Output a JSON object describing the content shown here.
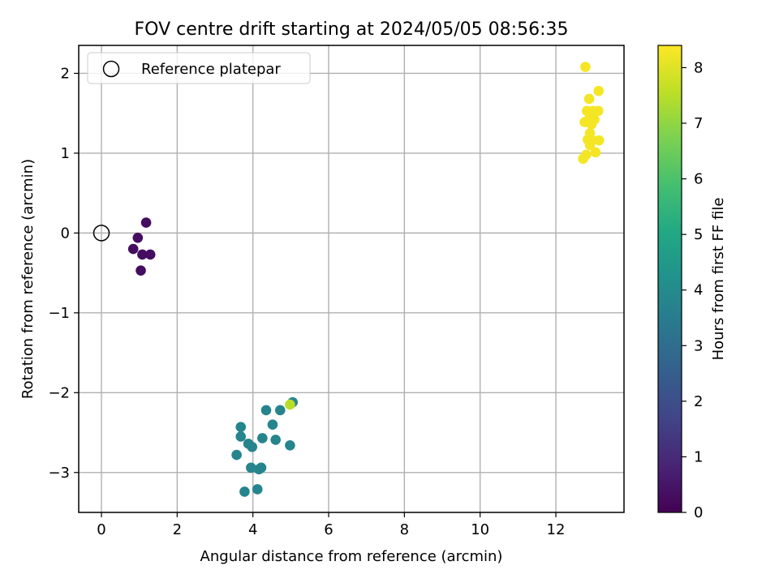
{
  "chart_data": {
    "type": "scatter",
    "title": "FOV centre drift starting at 2024/05/05 08:56:35",
    "xlabel": "Angular distance from reference (arcmin)",
    "ylabel": "Rotation from reference (arcmin)",
    "xlim": [
      -0.6,
      13.8
    ],
    "ylim": [
      -3.5,
      2.35
    ],
    "xticks": [
      0,
      2,
      4,
      6,
      8,
      10,
      12
    ],
    "yticks": [
      -3,
      -2,
      -1,
      0,
      1,
      2
    ],
    "xtick_labels": [
      "0",
      "2",
      "4",
      "6",
      "8",
      "10",
      "12"
    ],
    "ytick_labels": [
      "−3",
      "−2",
      "−1",
      "0",
      "1",
      "2"
    ],
    "grid": true,
    "legend": {
      "position": "top-left",
      "entries": [
        "Reference platepar"
      ]
    },
    "reference_point": {
      "x": 0,
      "y": 0,
      "label": "Reference platepar"
    },
    "colorbar": {
      "label": "Hours from first FF file",
      "range": [
        0,
        8.4
      ],
      "ticks": [
        0,
        1,
        2,
        3,
        4,
        5,
        6,
        7,
        8
      ],
      "tick_labels": [
        "0",
        "1",
        "2",
        "3",
        "4",
        "5",
        "6",
        "7",
        "8"
      ],
      "colormap": "viridis"
    },
    "points": [
      {
        "x": 1.18,
        "y": 0.13,
        "c": 0.3
      },
      {
        "x": 0.96,
        "y": -0.06,
        "c": 0.3
      },
      {
        "x": 0.84,
        "y": -0.2,
        "c": 0.3
      },
      {
        "x": 1.08,
        "y": -0.27,
        "c": 0.3
      },
      {
        "x": 1.29,
        "y": -0.27,
        "c": 0.3
      },
      {
        "x": 1.04,
        "y": -0.47,
        "c": 0.3
      },
      {
        "x": 3.68,
        "y": -2.43,
        "c": 3.75
      },
      {
        "x": 3.68,
        "y": -2.55,
        "c": 3.75
      },
      {
        "x": 3.57,
        "y": -2.78,
        "c": 3.75
      },
      {
        "x": 3.88,
        "y": -2.64,
        "c": 3.75
      },
      {
        "x": 3.98,
        "y": -2.68,
        "c": 3.75
      },
      {
        "x": 3.95,
        "y": -2.94,
        "c": 3.75
      },
      {
        "x": 4.16,
        "y": -2.96,
        "c": 3.75
      },
      {
        "x": 4.22,
        "y": -2.94,
        "c": 3.75
      },
      {
        "x": 4.25,
        "y": -2.57,
        "c": 3.75
      },
      {
        "x": 4.35,
        "y": -2.22,
        "c": 3.75
      },
      {
        "x": 4.52,
        "y": -2.4,
        "c": 3.75
      },
      {
        "x": 4.6,
        "y": -2.59,
        "c": 3.75
      },
      {
        "x": 4.72,
        "y": -2.22,
        "c": 3.75
      },
      {
        "x": 4.98,
        "y": -2.66,
        "c": 3.75
      },
      {
        "x": 3.78,
        "y": -3.24,
        "c": 3.75
      },
      {
        "x": 4.12,
        "y": -3.21,
        "c": 3.75
      },
      {
        "x": 5.05,
        "y": -2.12,
        "c": 3.75
      },
      {
        "x": 4.98,
        "y": -2.15,
        "c": 7.5
      },
      {
        "x": 12.78,
        "y": 2.08,
        "c": 8.3
      },
      {
        "x": 13.13,
        "y": 1.78,
        "c": 8.3
      },
      {
        "x": 12.88,
        "y": 1.68,
        "c": 8.3
      },
      {
        "x": 12.82,
        "y": 1.53,
        "c": 8.3
      },
      {
        "x": 12.98,
        "y": 1.53,
        "c": 8.3
      },
      {
        "x": 13.12,
        "y": 1.53,
        "c": 8.3
      },
      {
        "x": 12.9,
        "y": 1.46,
        "c": 8.3
      },
      {
        "x": 13.02,
        "y": 1.42,
        "c": 8.3
      },
      {
        "x": 12.76,
        "y": 1.39,
        "c": 8.3
      },
      {
        "x": 12.94,
        "y": 1.36,
        "c": 8.3
      },
      {
        "x": 12.9,
        "y": 1.25,
        "c": 8.3
      },
      {
        "x": 12.84,
        "y": 1.17,
        "c": 8.3
      },
      {
        "x": 12.96,
        "y": 1.16,
        "c": 8.3
      },
      {
        "x": 13.14,
        "y": 1.16,
        "c": 8.3
      },
      {
        "x": 12.9,
        "y": 1.1,
        "c": 8.3
      },
      {
        "x": 13.05,
        "y": 1.01,
        "c": 8.3
      },
      {
        "x": 12.8,
        "y": 0.98,
        "c": 8.3
      },
      {
        "x": 12.72,
        "y": 0.93,
        "c": 8.3
      }
    ]
  }
}
